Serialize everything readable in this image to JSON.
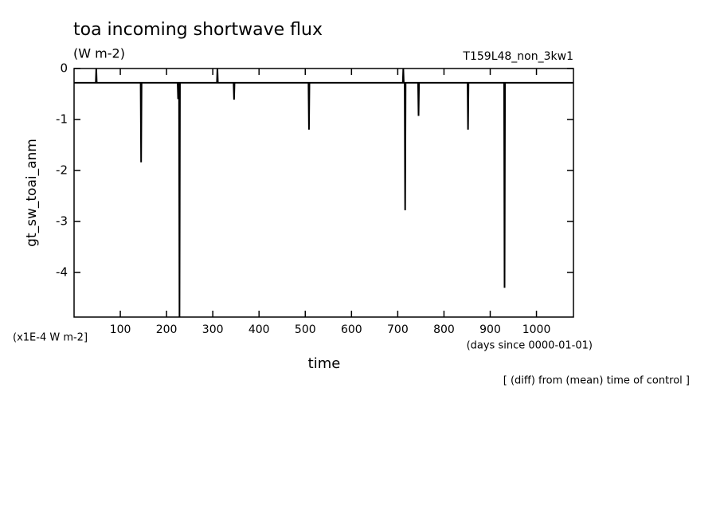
{
  "chart_data": {
    "type": "line",
    "title": "toa incoming shortwave flux",
    "subtitle": "(W m-2)",
    "annotation": "T159L48_non_3kw1",
    "ylabel": "gt_sw_toai_anm",
    "yunit": "(x1E-4 W m-2]",
    "xlabel": "time",
    "xunit": "(days since 0000-01-01)",
    "footnote": "[ (diff) from (mean) time of control ]",
    "x": [
      0,
      47,
      48,
      49,
      144,
      145,
      146,
      224,
      225,
      226,
      227,
      228,
      229,
      309,
      310,
      311,
      345,
      346,
      347,
      507,
      508,
      509,
      711,
      712,
      713,
      715,
      716,
      717,
      744,
      745,
      746,
      851,
      852,
      853,
      930,
      931,
      932,
      1080
    ],
    "series": [
      {
        "color": "#000000",
        "values": [
          -0.28,
          -0.28,
          0,
          -0.28,
          -0.28,
          -1.84,
          -0.28,
          -0.28,
          -0.6,
          -0.28,
          -0.28,
          -4.875,
          -0.28,
          -0.28,
          0,
          -0.28,
          -0.28,
          -0.61,
          -0.28,
          -0.28,
          -1.2,
          -0.28,
          -0.28,
          0,
          -0.28,
          -0.28,
          -2.78,
          -0.28,
          -0.28,
          -0.93,
          -0.28,
          -0.28,
          -1.2,
          -0.28,
          -0.28,
          -4.3,
          -0.28,
          -0.28
        ]
      }
    ],
    "xlim": [
      0,
      1080
    ],
    "xticks": [
      100,
      200,
      300,
      400,
      500,
      600,
      700,
      800,
      900,
      1000
    ],
    "ylim": [
      -4.875,
      0
    ],
    "yticks": [
      0,
      -1,
      -2,
      -3,
      -4
    ]
  }
}
